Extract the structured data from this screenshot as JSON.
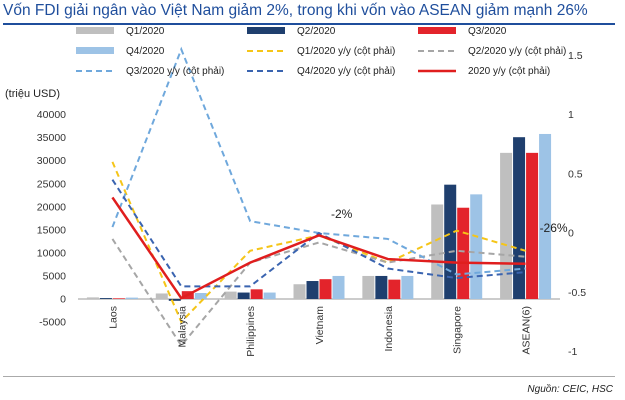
{
  "title": "Vốn FDI giải ngân vào Việt Nam giảm 2%, trong khi vốn vào ASEAN giảm mạnh 26%",
  "source": "Nguồn: CEIC, HSC",
  "colors": {
    "title": "#1f4e9c",
    "Q1/2020": "#bfbfbf",
    "Q2/2020": "#1f3f6e",
    "Q3/2020": "#e3242b",
    "Q4/2020": "#9dc3e6",
    "Q1/2020 y/y (cột phải)": "#f5c518",
    "Q2/2020 y/y (cột phải)": "#a6a6a6",
    "Q3/2020 y/y (cột phải)": "#6fa8dc",
    "Q4/2020 y/y (cột phải)": "#3a64b0",
    "2020 y/y (cột phải)": "#e01e1e"
  },
  "chart_data": {
    "type": "bar",
    "title": "Vốn FDI giải ngân vào Việt Nam giảm 2%, trong khi vốn vào ASEAN giảm mạnh 26%",
    "ylabel": "(triệu USD)",
    "ylim": [
      -5000,
      40000
    ],
    "yticks": [
      -5000,
      0,
      5000,
      10000,
      15000,
      20000,
      25000,
      30000,
      35000,
      40000
    ],
    "y2lim": [
      -1.5,
      2
    ],
    "y2ticks": [
      -1.5,
      -1,
      -0.5,
      0,
      0.5,
      1,
      1.5,
      2
    ],
    "legend_position": "top",
    "grid": false,
    "categories": [
      "Laos",
      "Malaysia",
      "Philippines",
      "Vietnam",
      "Indonesia",
      "Singapore",
      "ASEAN(6)"
    ],
    "series": [
      {
        "name": "Q1/2020",
        "kind": "bar",
        "values": [
          350,
          1200,
          1600,
          3200,
          5000,
          20500,
          31700
        ]
      },
      {
        "name": "Q2/2020",
        "kind": "bar",
        "values": [
          200,
          -400,
          1400,
          3900,
          5000,
          24800,
          35100
        ]
      },
      {
        "name": "Q3/2020",
        "kind": "bar",
        "values": [
          150,
          1700,
          2100,
          4300,
          4200,
          19800,
          31700
        ]
      },
      {
        "name": "Q4/2020",
        "kind": "bar",
        "values": [
          300,
          1300,
          1400,
          5000,
          5000,
          22700,
          35800
        ]
      },
      {
        "name": "Q1/2020 y/y (cột phải)",
        "kind": "line",
        "style": "dashed",
        "axis": "right",
        "values": [
          0.6,
          -0.75,
          -0.15,
          -0.02,
          -0.25,
          0.02,
          -0.15
        ]
      },
      {
        "name": "Q2/2020 y/y (cột phải)",
        "kind": "line",
        "style": "dashed",
        "axis": "right",
        "values": [
          -0.05,
          -0.95,
          -0.25,
          -0.08,
          -0.25,
          -0.15,
          -0.2
        ]
      },
      {
        "name": "Q3/2020 y/y (cột phải)",
        "kind": "line",
        "style": "dashed",
        "axis": "right",
        "values": [
          0.05,
          1.55,
          0.1,
          0.0,
          -0.05,
          -0.35,
          -0.3
        ]
      },
      {
        "name": "Q4/2020 y/y (cột phải)",
        "kind": "line",
        "style": "dashed",
        "axis": "right",
        "values": [
          0.45,
          -0.45,
          -0.45,
          0.0,
          -0.3,
          -0.38,
          -0.33
        ]
      },
      {
        "name": "2020 y/y (cột phải)",
        "kind": "line",
        "style": "solid",
        "axis": "right",
        "values": [
          0.3,
          -0.55,
          -0.25,
          -0.02,
          -0.22,
          -0.25,
          -0.26
        ]
      }
    ],
    "annotations": [
      {
        "text": "-2%",
        "category": "Vietnam"
      },
      {
        "text": "-26%",
        "category": "ASEAN(6)"
      }
    ]
  }
}
